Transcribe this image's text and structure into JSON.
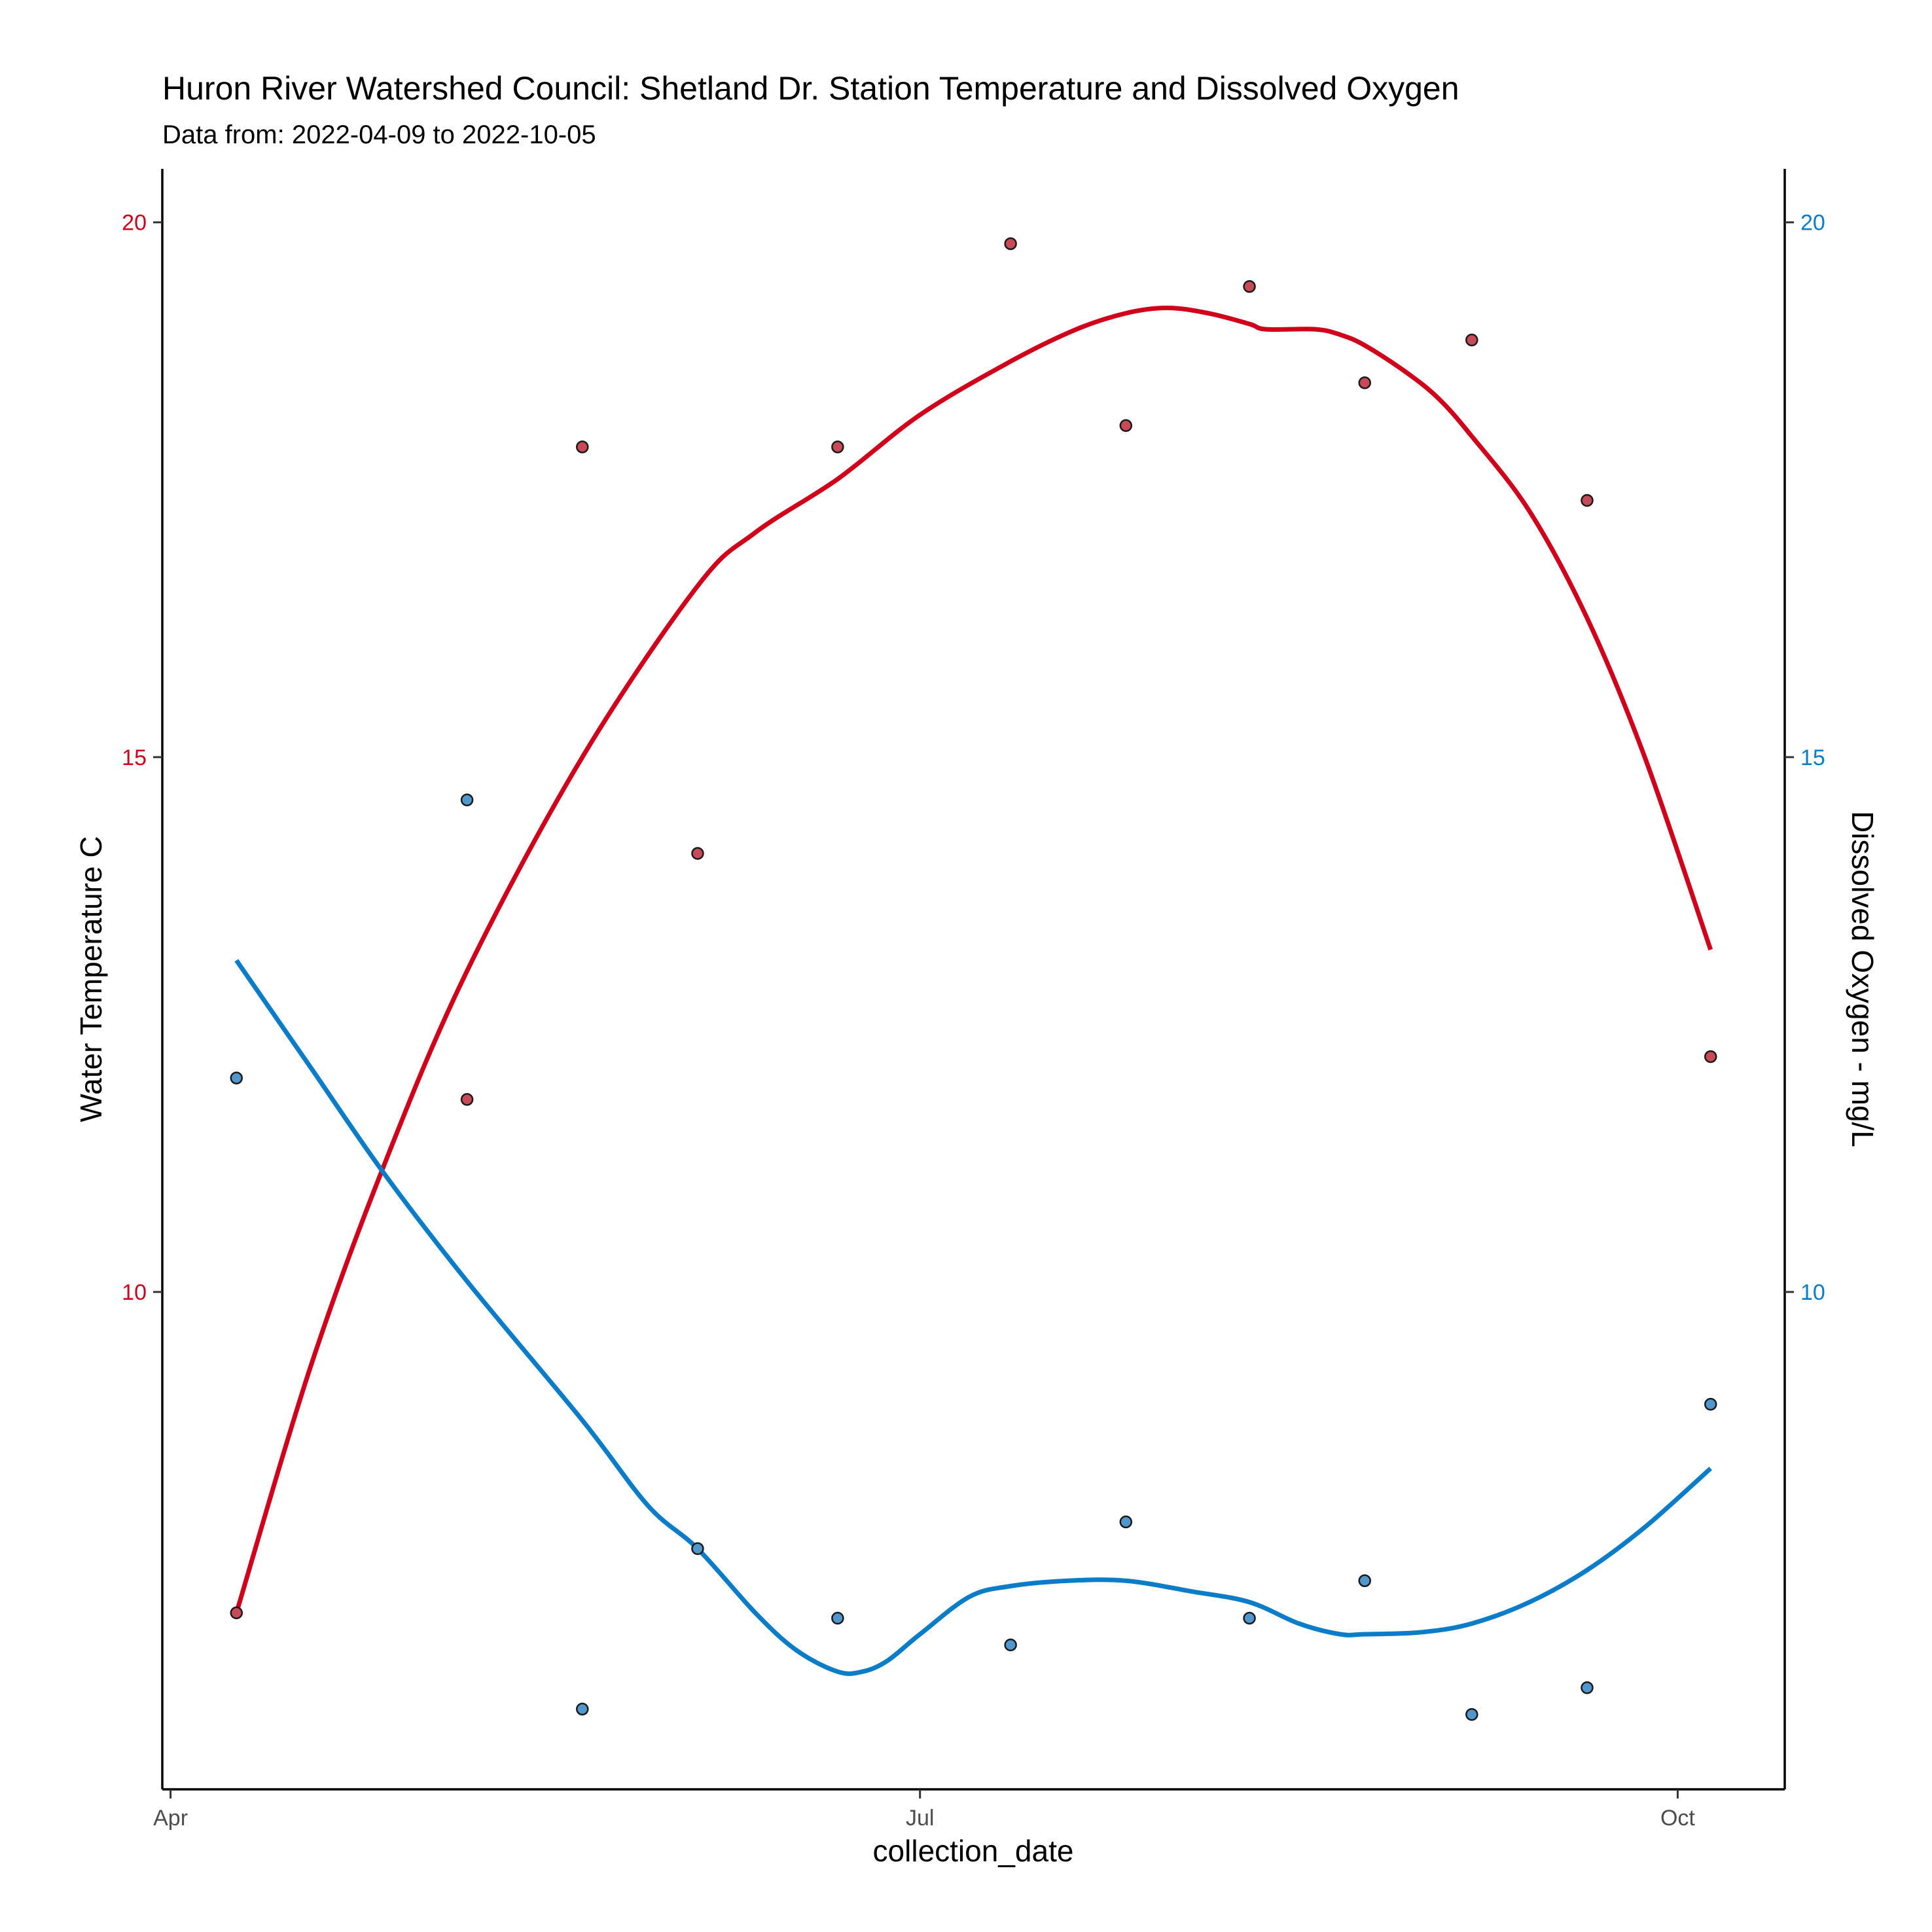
{
  "chart_data": {
    "type": "scatter",
    "title": "Huron River Watershed Council: Shetland Dr. Station Temperature and Dissolved Oxygen",
    "subtitle": "Data from: 2022-04-09 to 2022-10-05",
    "xlabel": "collection_date",
    "ylabel_left": "Water Temperature C",
    "ylabel_right": "Dissolved Oxygen - mg/L",
    "x_ticks": [
      {
        "date": "2022-04-01",
        "label": "Apr"
      },
      {
        "date": "2022-07-01",
        "label": "Jul"
      },
      {
        "date": "2022-10-01",
        "label": "Oct"
      }
    ],
    "xlim": [
      "2022-03-31",
      "2022-10-14"
    ],
    "y_left_ticks": [
      10,
      15,
      20
    ],
    "y_right_ticks": [
      10,
      15,
      20
    ],
    "ylim": [
      5.35,
      20.5
    ],
    "grid": false,
    "colors": {
      "temperature": "#d0021b",
      "oxygen": "#0a7cc8",
      "temp_points": "#c94a57",
      "do_points": "#4f97cc"
    },
    "series": [
      {
        "axis": "left",
        "x": [
          "2022-04-09",
          "2022-05-07",
          "2022-05-21",
          "2022-06-04",
          "2022-06-21",
          "2022-07-12",
          "2022-07-26",
          "2022-08-10",
          "2022-08-24",
          "2022-09-06",
          "2022-09-20",
          "2022-10-05"
        ],
        "y": [
          7.0,
          11.8,
          17.9,
          14.1,
          17.9,
          19.8,
          18.1,
          19.4,
          18.5,
          18.9,
          17.4,
          12.2
        ]
      },
      {
        "axis": "right",
        "x": [
          "2022-04-09",
          "2022-05-07",
          "2022-05-21",
          "2022-06-04",
          "2022-06-21",
          "2022-07-12",
          "2022-07-26",
          "2022-08-10",
          "2022-08-24",
          "2022-09-06",
          "2022-09-20",
          "2022-10-05"
        ],
        "y": [
          12.0,
          14.6,
          6.1,
          7.6,
          6.95,
          6.7,
          7.85,
          6.95,
          7.3,
          6.05,
          6.3,
          8.95
        ]
      }
    ],
    "trend_lines": [
      {
        "axis": "left",
        "x": [
          "2022-04-09",
          "2022-04-18",
          "2022-04-27",
          "2022-05-07",
          "2022-05-21",
          "2022-06-04",
          "2022-06-11",
          "2022-06-21",
          "2022-07-01",
          "2022-07-12",
          "2022-07-20",
          "2022-07-26",
          "2022-07-31",
          "2022-08-05",
          "2022-08-10",
          "2022-08-12",
          "2022-08-18",
          "2022-08-21",
          "2022-08-24",
          "2022-08-29",
          "2022-09-02",
          "2022-09-06",
          "2022-09-13",
          "2022-09-20",
          "2022-09-27",
          "2022-10-05"
        ],
        "y": [
          7.0,
          9.3,
          11.2,
          13.0,
          15.0,
          16.6,
          17.1,
          17.6,
          18.2,
          18.7,
          19.0,
          19.15,
          19.2,
          19.15,
          19.05,
          19.0,
          19.0,
          18.95,
          18.85,
          18.6,
          18.35,
          18.0,
          17.3,
          16.3,
          15.0,
          13.2
        ]
      },
      {
        "axis": "right",
        "x": [
          "2022-04-09",
          "2022-04-18",
          "2022-04-27",
          "2022-05-07",
          "2022-05-21",
          "2022-05-29",
          "2022-06-04",
          "2022-06-11",
          "2022-06-16",
          "2022-06-21",
          "2022-06-24",
          "2022-06-27",
          "2022-07-01",
          "2022-07-07",
          "2022-07-12",
          "2022-07-19",
          "2022-07-26",
          "2022-08-03",
          "2022-08-10",
          "2022-08-16",
          "2022-08-21",
          "2022-08-24",
          "2022-08-31",
          "2022-09-06",
          "2022-09-13",
          "2022-09-20",
          "2022-09-27",
          "2022-10-05"
        ],
        "y": [
          13.1,
          12.1,
          11.1,
          10.1,
          8.8,
          8.0,
          7.6,
          7.0,
          6.65,
          6.45,
          6.45,
          6.55,
          6.8,
          7.15,
          7.25,
          7.3,
          7.3,
          7.2,
          7.1,
          6.9,
          6.8,
          6.8,
          6.82,
          6.9,
          7.1,
          7.4,
          7.8,
          8.35
        ]
      }
    ]
  }
}
